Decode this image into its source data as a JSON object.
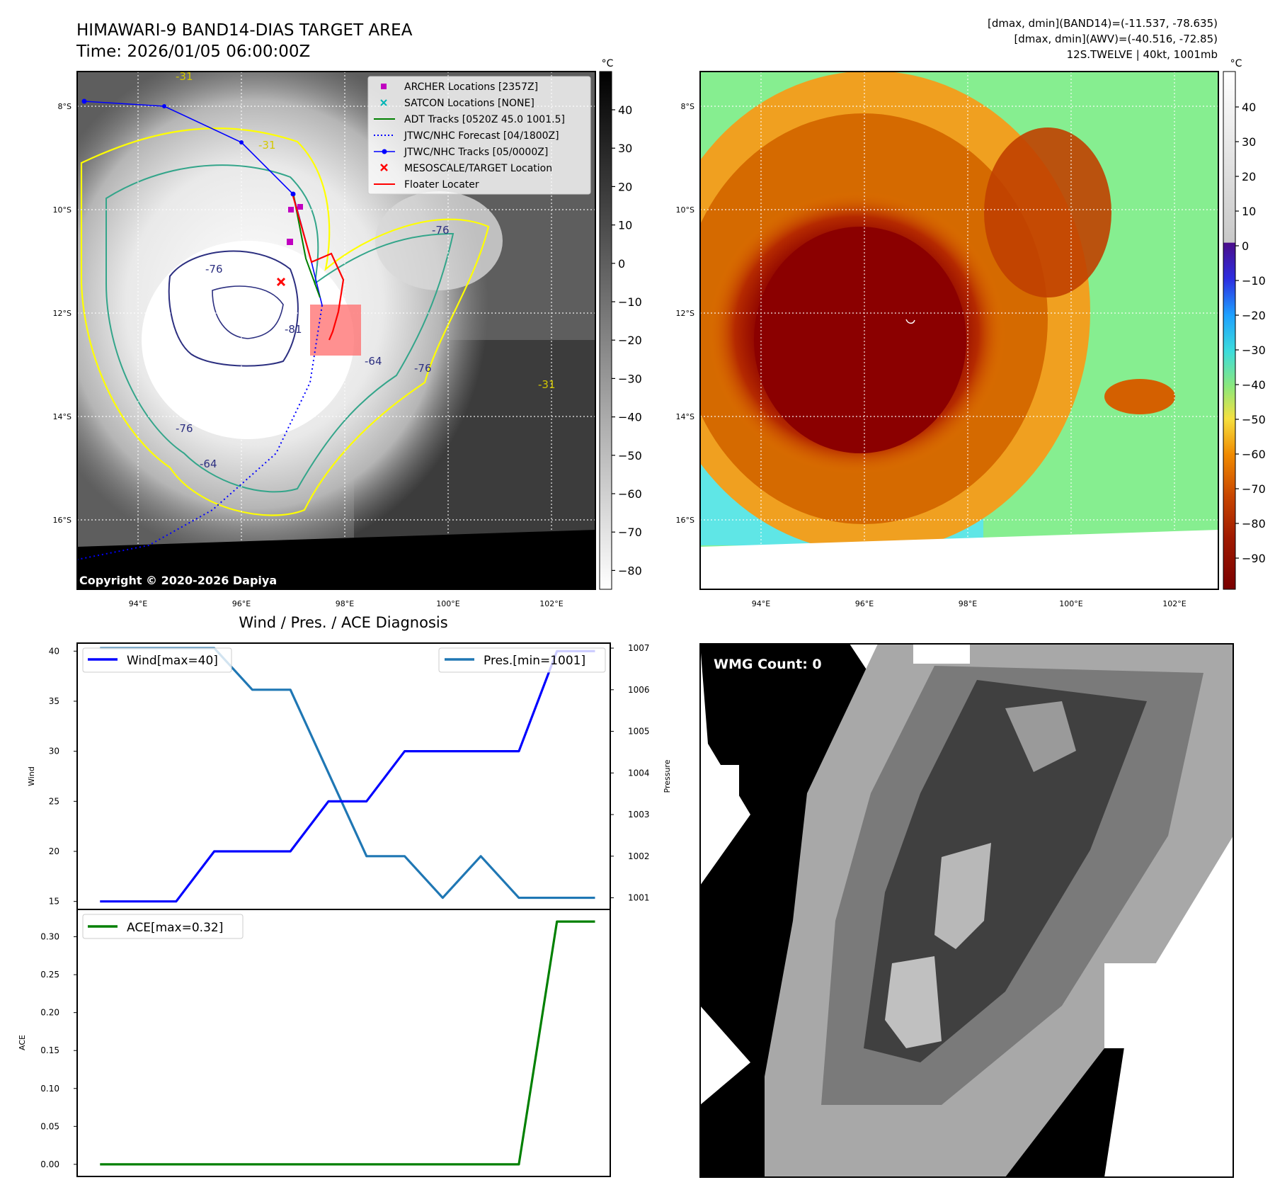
{
  "header": {
    "title_line1": "HIMAWARI-9 BAND14-DIAS TARGET AREA",
    "title_line2": "Time: 2026/01/05 06:00:00Z",
    "info_line1": "[dmax, dmin](BAND14)=(-11.537, -78.635)",
    "info_line2": "[dmax, dmin](AWV)=(-40.516, -72.85)",
    "info_line3": "12S.TWELVE | 40kt, 1001mb"
  },
  "colors": {
    "wind": "#0000ff",
    "pressure": "#1f77b4",
    "ace": "#008000",
    "archer": "#c000c0",
    "satcon": "#00b5b5",
    "adt": "#008000",
    "jtwc": "#0000ff",
    "target": "#ff0000",
    "floater": "#ff0000"
  },
  "map_panel": {
    "colorbar_unit": "°C",
    "colorbar_ticks": [
      "40",
      "30",
      "20",
      "10",
      "0",
      "−10",
      "−20",
      "−30",
      "−40",
      "−50",
      "−60",
      "−70",
      "−80"
    ],
    "lat_labels": [
      "8°S",
      "10°S",
      "12°S",
      "14°S",
      "16°S"
    ],
    "lon_labels": [
      "94°E",
      "96°E",
      "98°E",
      "100°E",
      "102°E"
    ],
    "copyright": "Copyright © 2020-2026 Dapiya",
    "contour_labels": [
      "-31",
      "-31",
      "-76",
      "-76",
      "-81",
      "-64",
      "-76",
      "-76",
      "-64",
      "-31"
    ],
    "legend": [
      {
        "label": "ARCHER Locations [2357Z]",
        "icon": "square-marker"
      },
      {
        "label": "SATCON Locations [NONE]",
        "icon": "x-marker"
      },
      {
        "label": "ADT Tracks [0520Z 45.0 1001.5]",
        "icon": "solid-line"
      },
      {
        "label": "JTWC/NHC Forecast [04/1800Z]",
        "icon": "dotted-line"
      },
      {
        "label": "JTWC/NHC Tracks [05/0000Z]",
        "icon": "line-with-dot"
      },
      {
        "label": "MESOSCALE/TARGET Location",
        "icon": "x-marker"
      },
      {
        "label": "Floater Locater",
        "icon": "solid-line"
      }
    ]
  },
  "awv_panel": {
    "colorbar_unit": "°C",
    "colorbar_ticks": [
      "40",
      "30",
      "20",
      "10",
      "0",
      "−10",
      "−20",
      "−30",
      "−40",
      "−50",
      "−60",
      "−70",
      "−80",
      "−90"
    ],
    "lat_labels": [
      "8°S",
      "10°S",
      "12°S",
      "14°S",
      "16°S"
    ],
    "lon_labels": [
      "94°E",
      "96°E",
      "98°E",
      "100°E",
      "102°E"
    ]
  },
  "wmg_panel": {
    "label": "WMG Count: 0"
  },
  "chart_data": [
    {
      "type": "line",
      "title": "Wind / Pres. / ACE Diagnosis",
      "x": [
        0,
        1,
        2,
        3,
        4,
        5,
        6,
        7,
        8,
        9,
        10,
        11,
        12,
        13
      ],
      "series": [
        {
          "name": "Wind[max=40]",
          "axis": "left",
          "values": [
            15,
            15,
            15,
            20,
            20,
            20,
            25,
            25,
            30,
            30,
            30,
            30,
            40,
            40
          ]
        },
        {
          "name": "Pres.[min=1001]",
          "axis": "right",
          "values": [
            1007,
            1007,
            1007,
            1007,
            1006,
            1006,
            1004,
            1002,
            1002,
            1001,
            1002,
            1001,
            1001,
            1001
          ]
        }
      ],
      "ylabel": "Wind",
      "ylabel_right": "Pressure",
      "ylim": [
        14.2,
        40.8
      ],
      "ylim_right": [
        1000.72,
        1007.12
      ],
      "yticks": [
        15,
        20,
        25,
        30,
        35,
        40
      ],
      "yticks_right": [
        1001,
        1002,
        1003,
        1004,
        1005,
        1006,
        1007
      ]
    },
    {
      "type": "line",
      "x": [
        0,
        1,
        2,
        3,
        4,
        5,
        6,
        7,
        8,
        9,
        10,
        11,
        12,
        13
      ],
      "series": [
        {
          "name": "ACE[max=0.32]",
          "values": [
            0,
            0,
            0,
            0,
            0,
            0,
            0,
            0,
            0,
            0,
            0,
            0,
            0.32,
            0.32
          ]
        }
      ],
      "ylabel": "ACE",
      "ylim": [
        -0.016,
        0.336
      ],
      "yticks": [
        "0.00",
        "0.05",
        "0.10",
        "0.15",
        "0.20",
        "0.25",
        "0.30"
      ]
    }
  ]
}
